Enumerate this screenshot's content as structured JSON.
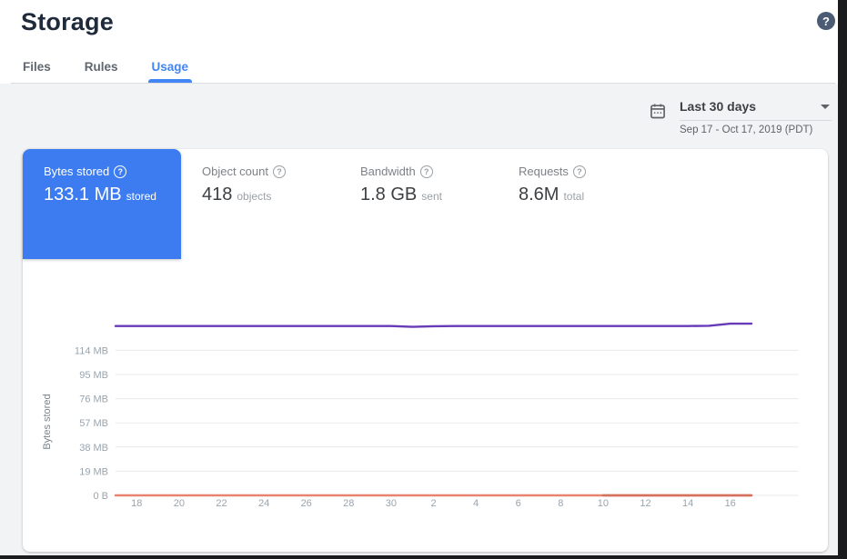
{
  "page": {
    "title": "Storage"
  },
  "icons": {
    "help_glyph": "?"
  },
  "tabs": [
    {
      "label": "Files",
      "active": false
    },
    {
      "label": "Rules",
      "active": false
    },
    {
      "label": "Usage",
      "active": true
    }
  ],
  "date_range": {
    "label": "Last 30 days",
    "detail": "Sep 17 - Oct 17, 2019 (PDT)"
  },
  "metrics": [
    {
      "label": "Bytes stored",
      "value": "133.1 MB",
      "unit": "stored",
      "selected": true
    },
    {
      "label": "Object count",
      "value": "418",
      "unit": "objects",
      "selected": false
    },
    {
      "label": "Bandwidth",
      "value": "1.8 GB",
      "unit": "sent",
      "selected": false
    },
    {
      "label": "Requests",
      "value": "8.6M",
      "unit": "total",
      "selected": false
    }
  ],
  "colors": {
    "accent_blue": "#4285f4",
    "selected_card_blue": "#3d7cf0",
    "line_purple": "#673ab7",
    "line_salmon": "#e8846e",
    "line_salmon_dark": "#d4705b",
    "help_circle_slate": "#4a5b73",
    "grid_gray": "#e7e9ec"
  },
  "chart_data": {
    "type": "line",
    "title": "",
    "xlabel": "",
    "ylabel": "Bytes stored",
    "grid": true,
    "legend": "none",
    "y_ticks": [
      "0 B",
      "19 MB",
      "38 MB",
      "57 MB",
      "76 MB",
      "95 MB",
      "114 MB"
    ],
    "y_tick_values_mb": [
      0,
      19,
      38,
      57,
      76,
      95,
      114
    ],
    "x_tick_labels": [
      "18",
      "20",
      "22",
      "24",
      "26",
      "28",
      "30",
      "2",
      "4",
      "6",
      "8",
      "10",
      "12",
      "14",
      "16"
    ],
    "x_tick_indices": [
      1,
      3,
      5,
      7,
      9,
      11,
      13,
      15,
      17,
      19,
      21,
      23,
      25,
      27,
      29
    ],
    "x_range_note": "daily points from Sep 17 to Oct 17 2019",
    "num_points": 31,
    "series": [
      {
        "name": "baseline-zero",
        "color": "#e8846e",
        "start_index": 0,
        "values": [
          0,
          0,
          0,
          0,
          0,
          0,
          0,
          0,
          0,
          0,
          0,
          0,
          0,
          0,
          0,
          0,
          0,
          0,
          0,
          0,
          0,
          0,
          0,
          0,
          0,
          0,
          0,
          0,
          0,
          0,
          0
        ]
      },
      {
        "name": "baseline-zero-overlay",
        "color": "#d4705b",
        "start_index": 23,
        "values": [
          0,
          0,
          0,
          0,
          0,
          0,
          0,
          0
        ]
      },
      {
        "name": "bytes-stored-mb",
        "color": "#673ab7",
        "start_index": 0,
        "values": [
          133.1,
          133.1,
          133.1,
          133.1,
          133.1,
          133.1,
          133.1,
          133.1,
          133.1,
          133.1,
          133.1,
          133.1,
          133.1,
          133.1,
          132.4,
          132.9,
          133.1,
          133.1,
          133.1,
          133.1,
          133.1,
          133.1,
          133.1,
          133.1,
          133.1,
          133.1,
          133.1,
          133.1,
          133.3,
          134.9,
          134.9
        ]
      }
    ]
  }
}
